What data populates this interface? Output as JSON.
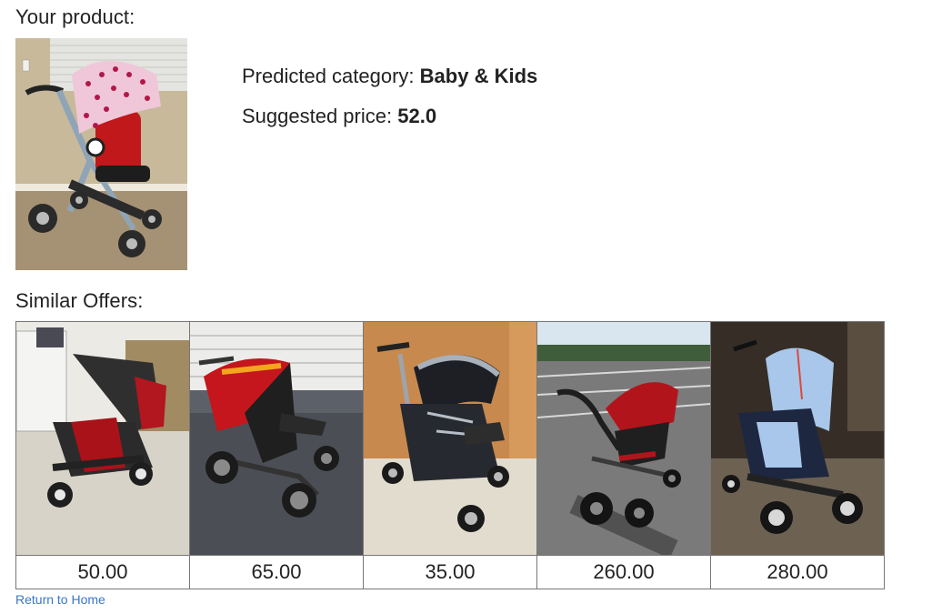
{
  "page": {
    "product_heading": "Your product:",
    "similar_heading": "Similar Offers:",
    "home_link": "Return to Home"
  },
  "prediction": {
    "category_label": "Predicted category:",
    "category_value": "Baby & Kids",
    "price_label": "Suggested price:",
    "price_value": "52.0"
  },
  "offers": [
    {
      "price": "50.00"
    },
    {
      "price": "65.00"
    },
    {
      "price": "35.00"
    },
    {
      "price": "260.00"
    },
    {
      "price": "280.00"
    }
  ]
}
